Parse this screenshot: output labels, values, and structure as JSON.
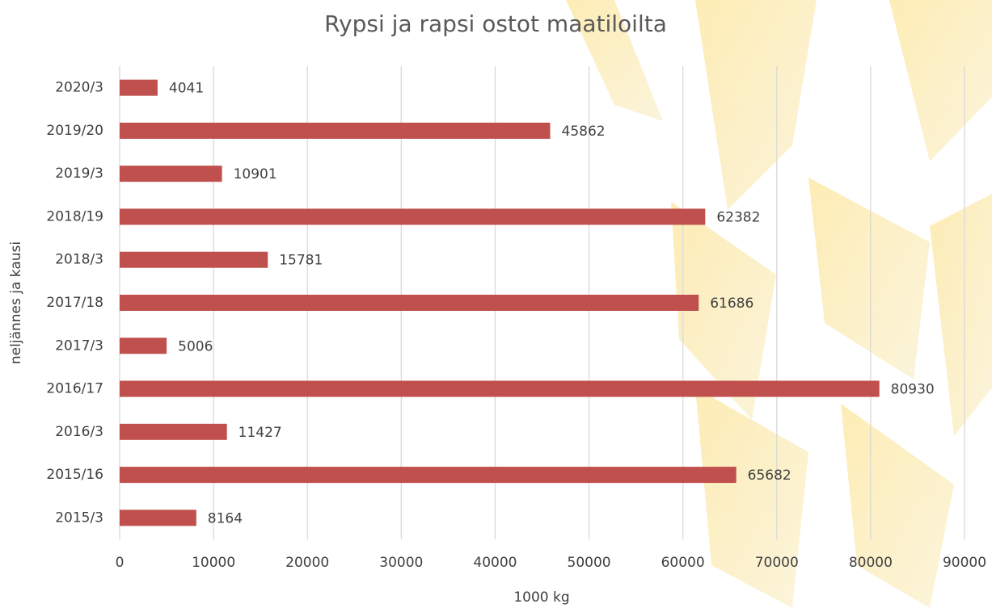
{
  "chart_data": {
    "type": "bar",
    "orientation": "horizontal",
    "title": "Rypsi ja rapsi ostot maatiloilta",
    "x_label": "1000 kg",
    "y_label": "neljännes ja kausi",
    "categories": [
      "2020/3",
      "2019/20",
      "2019/3",
      "2018/19",
      "2018/3",
      "2017/18",
      "2017/3",
      "2016/17",
      "2016/3",
      "2015/16",
      "2015/3"
    ],
    "values": [
      4041,
      45862,
      10901,
      62382,
      15781,
      61686,
      5006,
      80930,
      11427,
      65682,
      8164
    ],
    "color": "#c0504d",
    "xlim": [
      0,
      90000
    ],
    "xticks": [
      0,
      10000,
      20000,
      30000,
      40000,
      50000,
      60000,
      70000,
      80000,
      90000
    ],
    "grid": true
  }
}
